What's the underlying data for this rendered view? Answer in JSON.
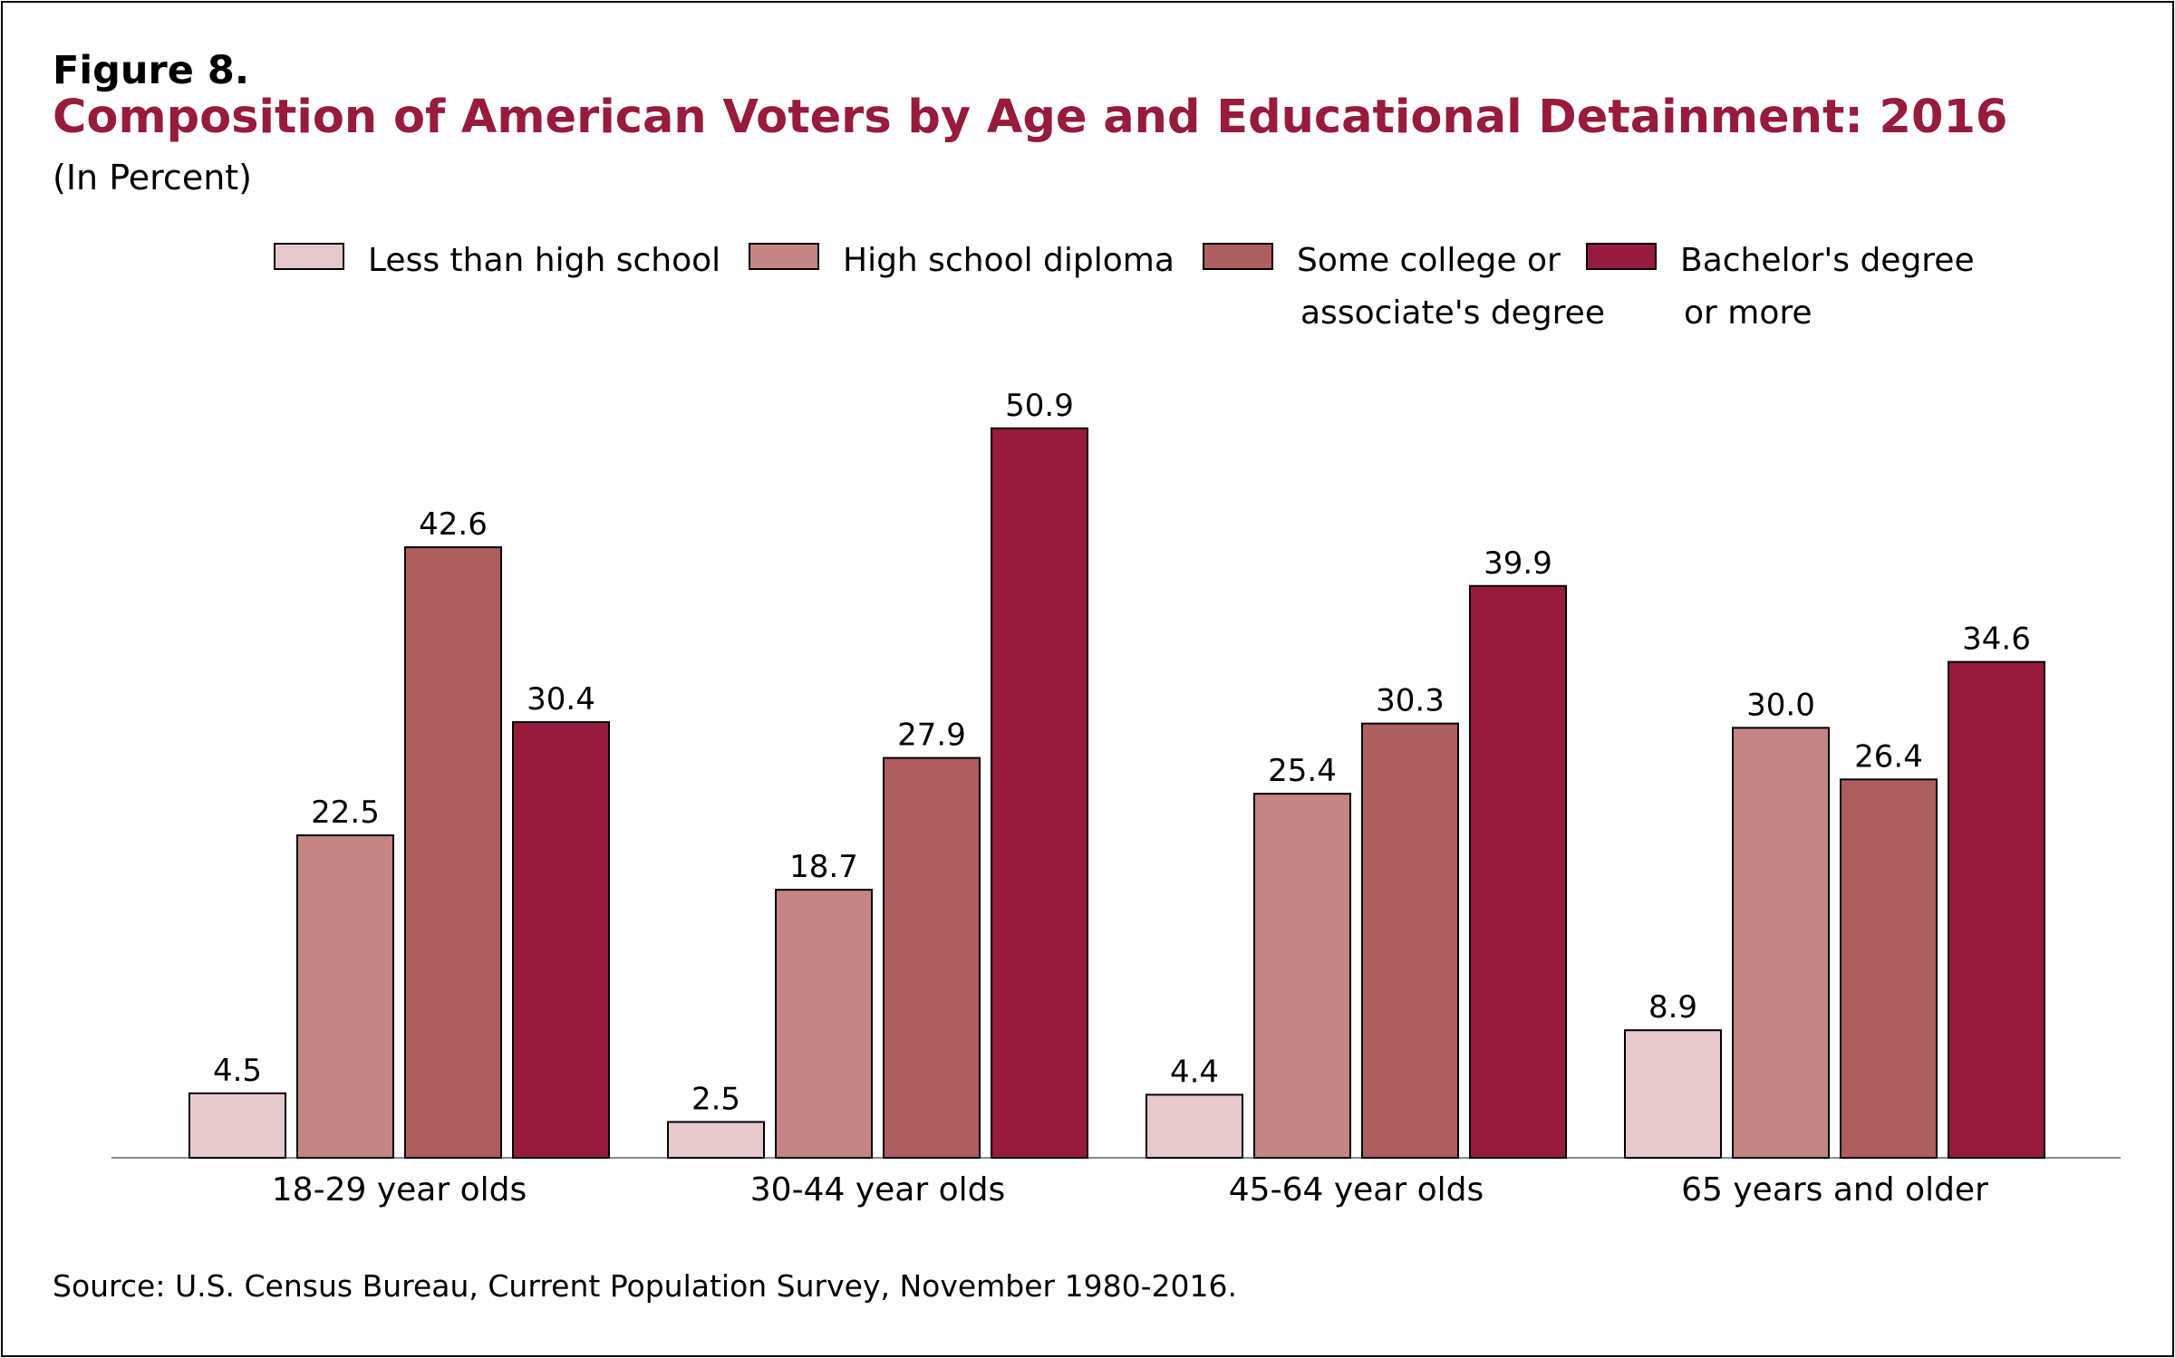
{
  "figure": {
    "label": "Figure 8.",
    "title": "Composition of American Voters by Age and Educational Detainment: 2016",
    "subtitle": "(In Percent)",
    "source": "Source: U.S. Census Bureau, Current Population Survey, November 1980-2016."
  },
  "colors": {
    "title": "#971B3A",
    "less_than_hs": "#E6CACB",
    "hs_diploma": "#C48584",
    "some_college": "#AE5D61",
    "bachelors": "#971B3A"
  },
  "chart_data": {
    "type": "bar",
    "title": "Composition of American Voters by Age and Educational Detainment: 2016",
    "subtitle": "(In Percent)",
    "categories": [
      "18-29 year olds",
      "30-44 year olds",
      "45-64 year olds",
      "65 years and older"
    ],
    "series": [
      {
        "name": "Less than high school",
        "name_lines": [
          "Less than high school"
        ],
        "color": "#E6CACB",
        "values": [
          4.5,
          2.5,
          4.4,
          8.9
        ]
      },
      {
        "name": "High school diploma",
        "name_lines": [
          "High school diploma"
        ],
        "color": "#C48584",
        "values": [
          22.5,
          18.7,
          25.4,
          30.0
        ]
      },
      {
        "name": "Some college or associate's degree",
        "name_lines": [
          "Some college or",
          "associate's degree"
        ],
        "color": "#AE5D61",
        "values": [
          42.6,
          27.9,
          30.3,
          26.4
        ]
      },
      {
        "name": "Bachelor's degree or more",
        "name_lines": [
          "Bachelor's degree",
          "or more"
        ],
        "color": "#971B3A",
        "values": [
          30.4,
          50.9,
          39.9,
          34.6
        ]
      }
    ],
    "xlabel": "",
    "ylabel": "",
    "ylim": [
      0,
      60
    ],
    "grid": false,
    "legend_position": "top"
  }
}
